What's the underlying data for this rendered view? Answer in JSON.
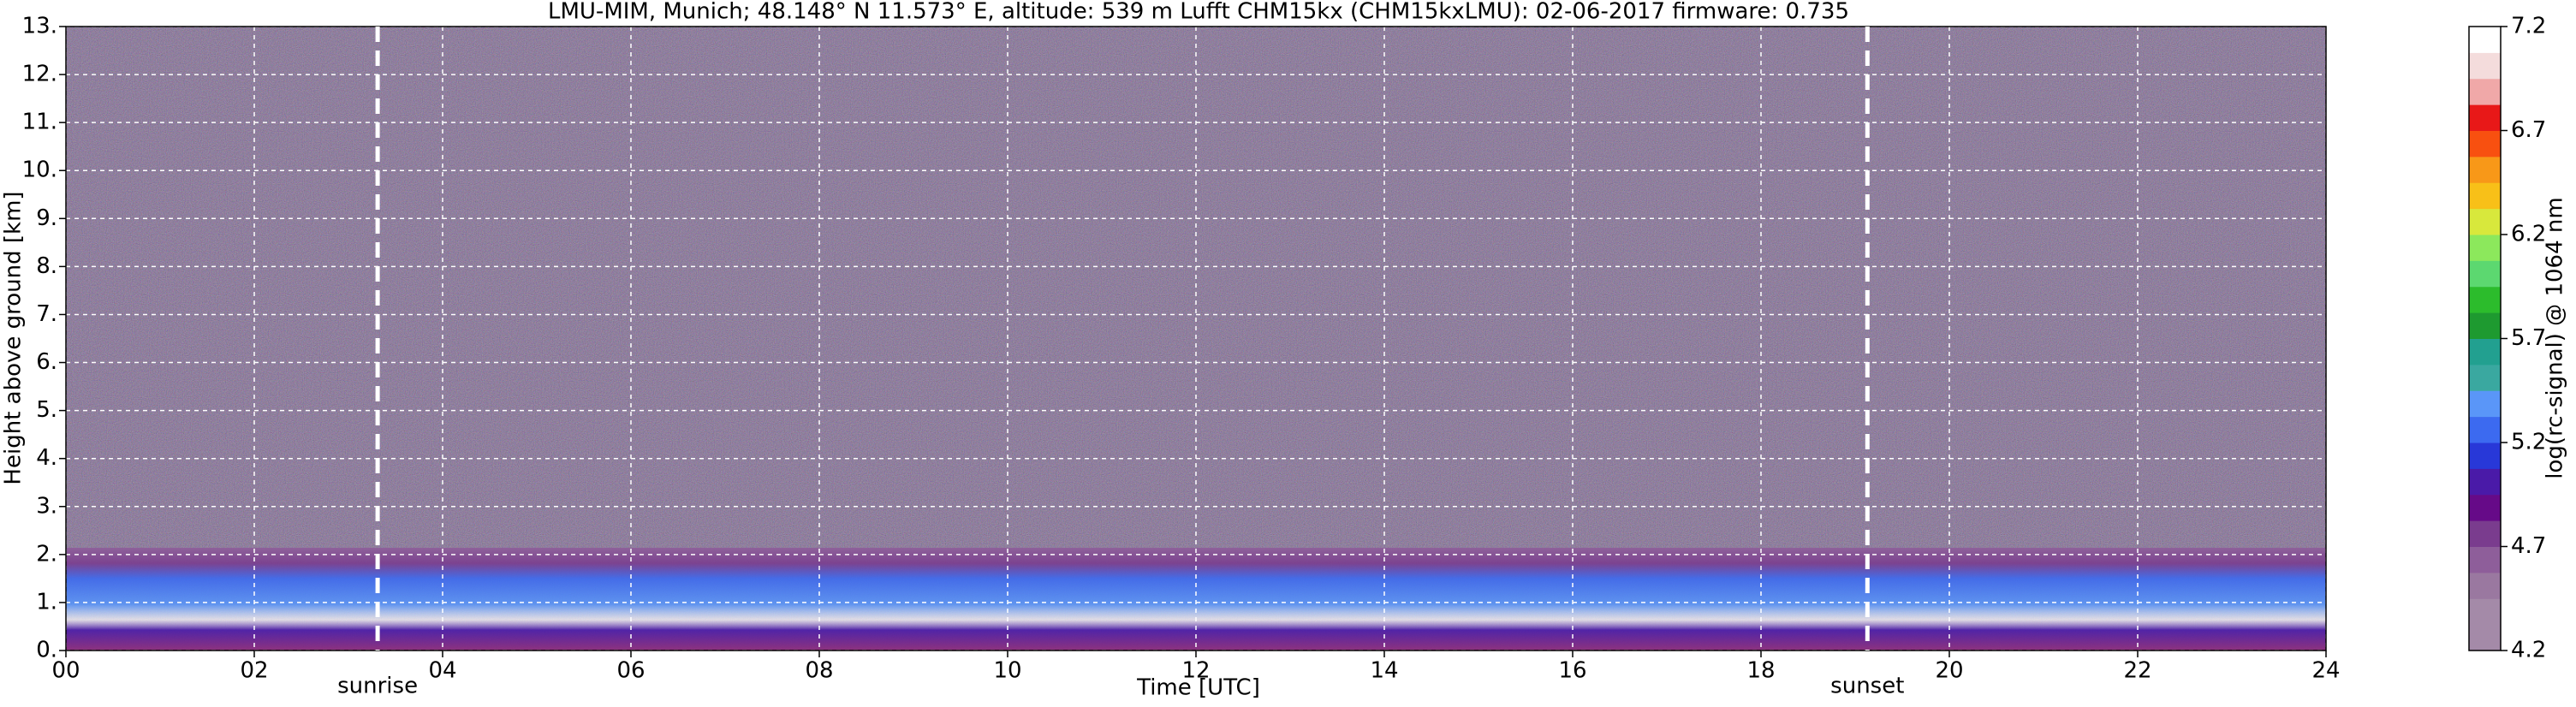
{
  "chart_data": {
    "type": "heatmap",
    "title": "LMU-MIM, Munich; 48.148° N 11.573° E, altitude: 539 m    Lufft CHM15kx (CHM15kxLMU): 02-06-2017    firmware: 0.735",
    "x_label": "Time [UTC]",
    "y_label": "Height above ground [km]",
    "xlim": [
      0,
      24
    ],
    "xticks": [
      {
        "value": 0,
        "label": "00"
      },
      {
        "value": 2,
        "label": "02"
      },
      {
        "value": 4,
        "label": "04"
      },
      {
        "value": 6,
        "label": "06"
      },
      {
        "value": 8,
        "label": "08"
      },
      {
        "value": 10,
        "label": "10"
      },
      {
        "value": 12,
        "label": "12"
      },
      {
        "value": 14,
        "label": "14"
      },
      {
        "value": 16,
        "label": "16"
      },
      {
        "value": 18,
        "label": "18"
      },
      {
        "value": 20,
        "label": "20"
      },
      {
        "value": 22,
        "label": "22"
      },
      {
        "value": 24,
        "label": "24"
      }
    ],
    "ylim": [
      0,
      13
    ],
    "yticks": [
      {
        "value": 0,
        "label": "0."
      },
      {
        "value": 1,
        "label": "1."
      },
      {
        "value": 2,
        "label": "2."
      },
      {
        "value": 3,
        "label": "3."
      },
      {
        "value": 4,
        "label": "4."
      },
      {
        "value": 5,
        "label": "5."
      },
      {
        "value": 6,
        "label": "6."
      },
      {
        "value": 7,
        "label": "7."
      },
      {
        "value": 8,
        "label": "8."
      },
      {
        "value": 9,
        "label": "9."
      },
      {
        "value": 10,
        "label": "10."
      },
      {
        "value": 11,
        "label": "11."
      },
      {
        "value": 12,
        "label": "12."
      },
      {
        "value": 13,
        "label": "13."
      }
    ],
    "grid": true,
    "annotations": [
      {
        "text": "sunrise",
        "x": 3.31
      },
      {
        "text": "sunset",
        "x": 19.13
      }
    ],
    "colorbar_label": "log(rc-signal) @ 1064 nm",
    "colorbar_lim": [
      4.2,
      7.2
    ],
    "colorbar_ticks": [
      4.2,
      4.7,
      5.2,
      5.7,
      6.2,
      6.7,
      7.2
    ],
    "colorbar_colors": [
      "#a48aa8",
      "#a48aa8",
      "#9a78a0",
      "#8e5e9a",
      "#7a3c8e",
      "#660a88",
      "#4a1aa8",
      "#2838d8",
      "#3c6af0",
      "#5a96f8",
      "#3aa8a0",
      "#22a090",
      "#1e9a30",
      "#2cbc2c",
      "#5cd870",
      "#8ce85c",
      "#d8e83c",
      "#f8c018",
      "#f89818",
      "#f85010",
      "#e81818",
      "#f0a8a8",
      "#f4dcdc",
      "#ffffff"
    ]
  }
}
